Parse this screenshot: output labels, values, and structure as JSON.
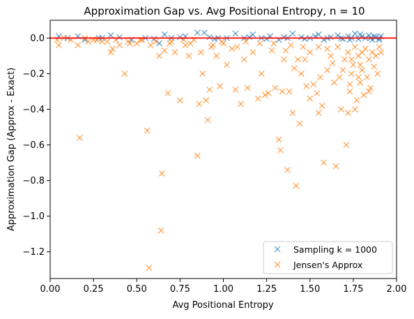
{
  "chart_data": {
    "type": "scatter",
    "title": "Approximation Gap vs. Avg Positional Entropy, n = 10",
    "xlabel": "Avg Positional Entropy",
    "ylabel": "Approximation Gap (Approx - Exact)",
    "xlim": [
      0.0,
      2.0
    ],
    "ylim": [
      -1.35,
      0.1
    ],
    "x_ticks": [
      0.0,
      0.25,
      0.5,
      0.75,
      1.0,
      1.25,
      1.5,
      1.75,
      2.0
    ],
    "x_tick_labels": [
      "0.00",
      "0.25",
      "0.50",
      "0.75",
      "1.00",
      "1.25",
      "1.50",
      "1.75",
      "2.00"
    ],
    "y_ticks": [
      0.0,
      -0.2,
      -0.4,
      -0.6,
      -0.8,
      -1.0,
      -1.2
    ],
    "y_tick_labels": [
      "0.0",
      "−0.2",
      "−0.4",
      "−0.6",
      "−0.8",
      "−1.0",
      "−1.2"
    ],
    "grid": false,
    "legend_position": "lower-right",
    "reference_line": {
      "y": 0.0,
      "color": "#ff0000"
    },
    "marker": "x",
    "series": [
      {
        "name": "Sampling k = 1000",
        "color": "#1f77b4",
        "points": [
          [
            0.05,
            0.01
          ],
          [
            0.1,
            0.0
          ],
          [
            0.16,
            0.01
          ],
          [
            0.2,
            -0.01
          ],
          [
            0.28,
            0.0
          ],
          [
            0.35,
            0.015
          ],
          [
            0.4,
            0.005
          ],
          [
            0.47,
            -0.01
          ],
          [
            0.55,
            0.0
          ],
          [
            0.6,
            -0.005
          ],
          [
            0.66,
            0.02
          ],
          [
            0.7,
            0.0
          ],
          [
            0.78,
            0.01
          ],
          [
            0.85,
            0.03
          ],
          [
            0.89,
            0.03
          ],
          [
            0.92,
            0.005
          ],
          [
            0.97,
            0.0
          ],
          [
            1.02,
            0.0
          ],
          [
            1.07,
            0.025
          ],
          [
            1.12,
            0.0
          ],
          [
            1.17,
            0.02
          ],
          [
            1.22,
            0.0
          ],
          [
            1.27,
            0.01
          ],
          [
            1.32,
            -0.01
          ],
          [
            1.37,
            0.0
          ],
          [
            1.4,
            0.025
          ],
          [
            1.45,
            0.005
          ],
          [
            1.5,
            0.0
          ],
          [
            1.55,
            0.02
          ],
          [
            1.58,
            -0.01
          ],
          [
            1.62,
            0.005
          ],
          [
            1.66,
            0.015
          ],
          [
            1.69,
            -0.005
          ],
          [
            1.72,
            0.01
          ],
          [
            1.74,
            0.0
          ],
          [
            1.76,
            0.025
          ],
          [
            1.78,
            -0.005
          ],
          [
            1.8,
            0.01
          ],
          [
            1.82,
            0.0
          ],
          [
            1.84,
            0.015
          ],
          [
            1.86,
            -0.01
          ],
          [
            1.88,
            0.005
          ],
          [
            1.9,
            0.0
          ],
          [
            1.91,
            0.01
          ],
          [
            1.73,
            -0.01
          ],
          [
            1.79,
            0.02
          ],
          [
            1.85,
            0.0
          ],
          [
            1.68,
            0.0
          ],
          [
            1.6,
            0.0
          ],
          [
            1.53,
            0.01
          ],
          [
            1.47,
            -0.005
          ],
          [
            1.35,
            0.005
          ],
          [
            1.25,
            -0.005
          ],
          [
            1.15,
            0.005
          ],
          [
            0.95,
            -0.005
          ],
          [
            0.75,
            0.005
          ],
          [
            0.63,
            -0.03
          ],
          [
            0.3,
            0.0
          ],
          [
            1.9,
            -0.01
          ],
          [
            1.87,
            0.01
          ]
        ]
      },
      {
        "name": "Jensen's Approx",
        "color": "#ff7f0e",
        "points": [
          [
            0.04,
            -0.01
          ],
          [
            0.05,
            -0.04
          ],
          [
            0.08,
            0.0
          ],
          [
            0.16,
            -0.04
          ],
          [
            0.17,
            -0.56
          ],
          [
            0.2,
            0.0
          ],
          [
            0.25,
            -0.01
          ],
          [
            0.3,
            -0.02
          ],
          [
            0.35,
            -0.08
          ],
          [
            0.36,
            -0.06
          ],
          [
            0.4,
            -0.04
          ],
          [
            0.43,
            -0.2
          ],
          [
            0.45,
            -0.02
          ],
          [
            0.5,
            -0.03
          ],
          [
            0.53,
            -0.01
          ],
          [
            0.56,
            -0.52
          ],
          [
            0.57,
            -1.29
          ],
          [
            0.58,
            -0.04
          ],
          [
            0.63,
            -0.1
          ],
          [
            0.64,
            -1.08
          ],
          [
            0.645,
            -0.76
          ],
          [
            0.66,
            -0.07
          ],
          [
            0.68,
            -0.31
          ],
          [
            0.7,
            -0.02
          ],
          [
            0.72,
            -0.08
          ],
          [
            0.75,
            -0.35
          ],
          [
            0.78,
            -0.04
          ],
          [
            0.8,
            -0.1
          ],
          [
            0.83,
            -0.01
          ],
          [
            0.85,
            -0.66
          ],
          [
            0.86,
            -0.37
          ],
          [
            0.87,
            -0.08
          ],
          [
            0.88,
            -0.2
          ],
          [
            0.9,
            -0.35
          ],
          [
            0.91,
            -0.46
          ],
          [
            0.92,
            -0.29
          ],
          [
            0.93,
            -0.05
          ],
          [
            0.96,
            -0.1
          ],
          [
            0.98,
            -0.27
          ],
          [
            1.0,
            -0.03
          ],
          [
            1.02,
            -0.15
          ],
          [
            1.05,
            -0.06
          ],
          [
            1.07,
            -0.29
          ],
          [
            1.1,
            -0.37
          ],
          [
            1.12,
            -0.12
          ],
          [
            1.14,
            -0.28
          ],
          [
            1.17,
            -0.08
          ],
          [
            1.2,
            -0.34
          ],
          [
            1.22,
            -0.2
          ],
          [
            1.24,
            -0.32
          ],
          [
            1.26,
            -0.31
          ],
          [
            1.28,
            -0.07
          ],
          [
            1.3,
            -0.28
          ],
          [
            1.32,
            -0.57
          ],
          [
            1.33,
            -0.63
          ],
          [
            1.34,
            -0.3
          ],
          [
            1.35,
            -0.12
          ],
          [
            1.37,
            -0.74
          ],
          [
            1.38,
            -0.3
          ],
          [
            1.4,
            -0.42
          ],
          [
            1.42,
            -0.83
          ],
          [
            1.44,
            -0.48
          ],
          [
            1.45,
            -0.2
          ],
          [
            1.47,
            -0.12
          ],
          [
            1.5,
            -0.34
          ],
          [
            1.52,
            -0.26
          ],
          [
            1.54,
            -0.31
          ],
          [
            1.55,
            -0.42
          ],
          [
            1.57,
            -0.38
          ],
          [
            1.58,
            -0.7
          ],
          [
            1.6,
            -0.18
          ],
          [
            1.62,
            -0.1
          ],
          [
            1.64,
            -0.25
          ],
          [
            1.65,
            -0.72
          ],
          [
            1.67,
            -0.22
          ],
          [
            1.68,
            -0.4
          ],
          [
            1.7,
            -0.12
          ],
          [
            1.71,
            -0.6
          ],
          [
            1.72,
            -0.42
          ],
          [
            1.73,
            -0.3
          ],
          [
            1.74,
            -0.2
          ],
          [
            1.75,
            -0.15
          ],
          [
            1.76,
            -0.4
          ],
          [
            1.77,
            -0.35
          ],
          [
            1.78,
            -0.1
          ],
          [
            1.79,
            -0.25
          ],
          [
            1.8,
            -0.18
          ],
          [
            1.81,
            -0.32
          ],
          [
            1.82,
            -0.06
          ],
          [
            1.83,
            -0.22
          ],
          [
            1.84,
            -0.12
          ],
          [
            1.85,
            -0.28
          ],
          [
            1.86,
            -0.08
          ],
          [
            1.87,
            -0.16
          ],
          [
            1.88,
            -0.1
          ],
          [
            1.89,
            -0.2
          ],
          [
            1.9,
            -0.05
          ],
          [
            1.91,
            -0.08
          ],
          [
            1.76,
            -0.05
          ],
          [
            1.78,
            -0.22
          ],
          [
            1.74,
            -0.12
          ],
          [
            1.8,
            -0.08
          ],
          [
            1.72,
            -0.08
          ],
          [
            1.66,
            -0.05
          ],
          [
            1.6,
            -0.06
          ],
          [
            1.55,
            -0.05
          ],
          [
            1.5,
            -0.08
          ],
          [
            1.46,
            -0.05
          ],
          [
            1.43,
            -0.12
          ],
          [
            1.39,
            -0.04
          ],
          [
            1.36,
            -0.07
          ],
          [
            1.29,
            -0.03
          ],
          [
            1.21,
            -0.03
          ],
          [
            1.13,
            -0.02
          ],
          [
            1.08,
            -0.05
          ],
          [
            0.99,
            -0.02
          ],
          [
            0.94,
            -0.04
          ],
          [
            0.81,
            -0.03
          ],
          [
            0.77,
            -0.01
          ],
          [
            0.69,
            -0.03
          ],
          [
            0.61,
            -0.02
          ],
          [
            0.52,
            -0.01
          ],
          [
            0.46,
            -0.03
          ],
          [
            0.38,
            -0.01
          ],
          [
            0.33,
            -0.02
          ],
          [
            0.27,
            -0.01
          ],
          [
            0.22,
            -0.02
          ],
          [
            0.12,
            -0.01
          ],
          [
            1.84,
            -0.3
          ],
          [
            1.79,
            -0.15
          ],
          [
            1.73,
            -0.26
          ],
          [
            1.69,
            -0.18
          ],
          [
            1.63,
            -0.14
          ],
          [
            1.56,
            -0.22
          ],
          [
            1.48,
            -0.27
          ],
          [
            1.41,
            -0.17
          ]
        ]
      }
    ]
  }
}
